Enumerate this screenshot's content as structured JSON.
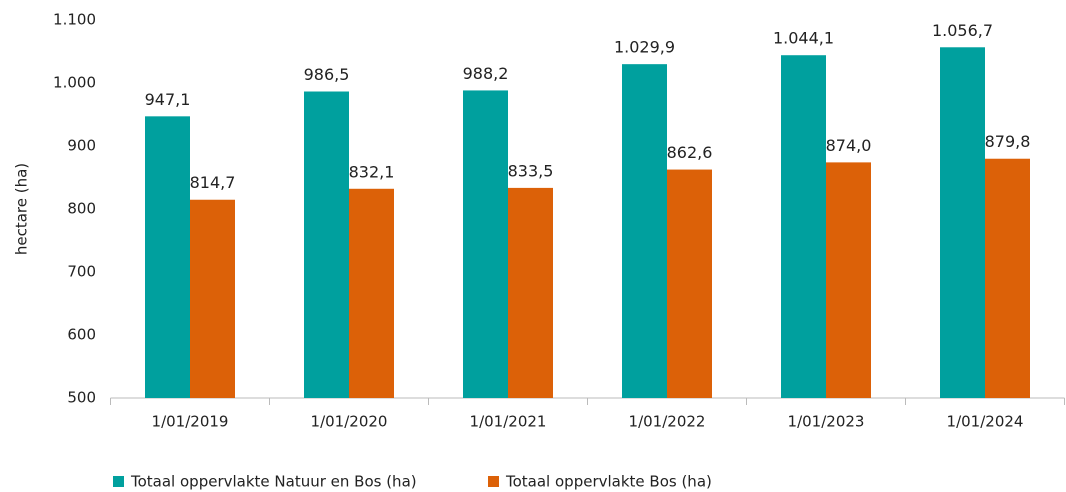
{
  "chart_data": {
    "type": "bar",
    "y_label": "hectare (ha)",
    "categories": [
      "1/01/2019",
      "1/01/2020",
      "1/01/2021",
      "1/01/2022",
      "1/01/2023",
      "1/01/2024"
    ],
    "series": [
      {
        "name": "Totaal oppervlakte Natuur en Bos (ha)",
        "color": "#00a09e",
        "values": [
          947.1,
          986.5,
          988.2,
          1029.9,
          1044.1,
          1056.7
        ],
        "value_labels": [
          "947,1",
          "986,5",
          "988,2",
          "1.029,9",
          "1.044,1",
          "1.056,7"
        ]
      },
      {
        "name": "Totaal oppervlakte Bos (ha)",
        "color": "#dc6108",
        "values": [
          814.7,
          832.1,
          833.5,
          862.6,
          874.0,
          879.8
        ],
        "value_labels": [
          "814,7",
          "832,1",
          "833,5",
          "862,6",
          "874,0",
          "879,8"
        ]
      }
    ],
    "ylim": [
      500,
      1100
    ],
    "yticks": [
      500,
      600,
      700,
      800,
      900,
      {
        "value": 1000,
        "label": "1.000"
      },
      {
        "value": 1100,
        "label": "1.100"
      }
    ],
    "grid": false
  }
}
